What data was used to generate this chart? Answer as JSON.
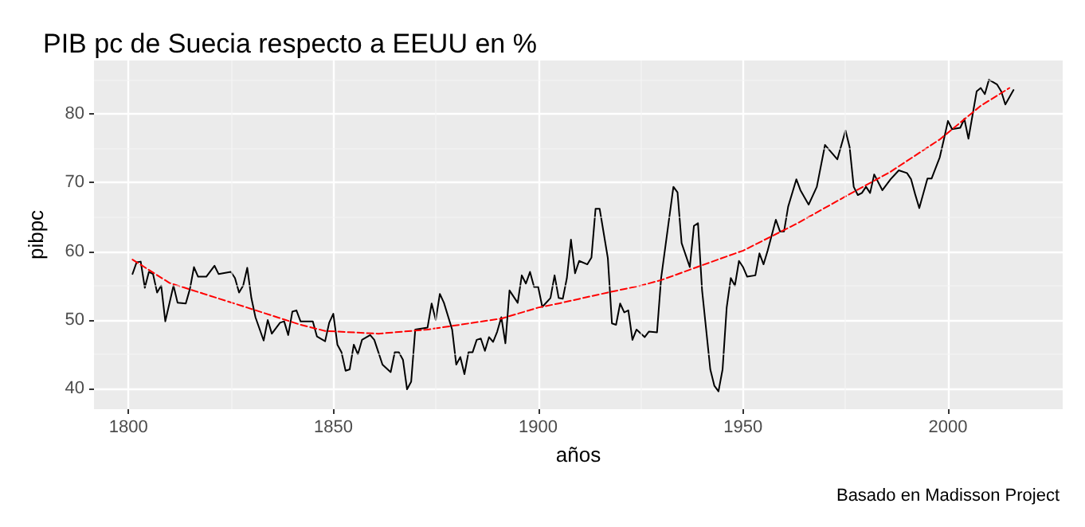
{
  "chart_data": {
    "type": "line",
    "title": "PIB pc de Suecia respecto a EEUU en %",
    "xlabel": "años",
    "ylabel": "pibpc",
    "annotations": [
      "Basado en Madisson Project"
    ],
    "xlim": [
      1791.6,
      2028
    ],
    "xticks": [
      1800,
      1850,
      1900,
      1950,
      2000
    ],
    "ylim": [
      37,
      87.8
    ],
    "yticks": [
      40,
      50,
      60,
      70,
      80
    ],
    "grid": true,
    "marker": "none",
    "series": [
      {
        "color": "#000000",
        "line_style": "solid",
        "x": [
          1801,
          1802,
          1803,
          1804,
          1805,
          1806,
          1807,
          1808,
          1809,
          1811,
          1812,
          1814,
          1815,
          1816,
          1817,
          1819,
          1821,
          1822,
          1825,
          1826,
          1827,
          1828,
          1829,
          1830,
          1831,
          1833,
          1834,
          1835,
          1837,
          1838,
          1839,
          1840,
          1841,
          1842,
          1845,
          1846,
          1848,
          1849,
          1850,
          1851,
          1852,
          1853,
          1854,
          1855,
          1856,
          1857,
          1859,
          1860,
          1861,
          1862,
          1864,
          1865,
          1866,
          1867,
          1868,
          1869,
          1870,
          1873,
          1874,
          1875,
          1876,
          1877,
          1879,
          1880,
          1881,
          1882,
          1883,
          1884,
          1885,
          1886,
          1887,
          1888,
          1889,
          1890,
          1891,
          1892,
          1893,
          1895,
          1896,
          1897,
          1898,
          1899,
          1900,
          1901,
          1903,
          1904,
          1905,
          1906,
          1907,
          1908,
          1909,
          1910,
          1912,
          1913,
          1914,
          1915,
          1917,
          1918,
          1919,
          1920,
          1921,
          1922,
          1923,
          1924,
          1926,
          1927,
          1929,
          1930,
          1933,
          1934,
          1935,
          1937,
          1938,
          1939,
          1940,
          1942,
          1943,
          1944,
          1945,
          1946,
          1947,
          1948,
          1949,
          1950,
          1951,
          1953,
          1954,
          1955,
          1956,
          1958,
          1959,
          1960,
          1961,
          1963,
          1964,
          1966,
          1968,
          1970,
          1973,
          1975,
          1976,
          1977,
          1978,
          1979,
          1980,
          1981,
          1982,
          1984,
          1986,
          1988,
          1990,
          1991,
          1992,
          1993,
          1995,
          1996,
          1998,
          1999,
          2000,
          2001,
          2003,
          2004,
          2005,
          2007,
          2008,
          2009,
          2010,
          2012,
          2013,
          2014,
          2016
        ],
        "values": [
          56.7,
          58.4,
          58.5,
          54.7,
          57,
          56.7,
          54,
          55,
          49.8,
          55,
          52.5,
          52.4,
          54.5,
          57.7,
          56.3,
          56.3,
          57.9,
          56.7,
          57,
          56.1,
          54,
          55,
          57.6,
          53.2,
          50.4,
          47,
          50,
          48,
          49.6,
          49.8,
          47.8,
          51.2,
          51.4,
          49.8,
          49.8,
          47.6,
          46.9,
          49.6,
          50.9,
          46.4,
          45.3,
          42.6,
          42.8,
          46.4,
          45,
          47.1,
          47.8,
          47.1,
          45.3,
          43.5,
          42.4,
          45.3,
          45.3,
          44.2,
          39.9,
          41,
          48.6,
          48.9,
          52.4,
          50,
          53.8,
          52.5,
          48.6,
          43.5,
          44.6,
          42.1,
          45.3,
          45.3,
          47.1,
          47.3,
          45.5,
          47.5,
          46.8,
          48.3,
          50.4,
          46.6,
          54.3,
          52.5,
          56.5,
          55.3,
          57,
          54.8,
          54.8,
          51.9,
          53.2,
          56.5,
          53.2,
          53.1,
          56.1,
          61.7,
          56.8,
          58.6,
          58.1,
          59.1,
          66.2,
          66.2,
          59,
          49.5,
          49.3,
          52.4,
          51.1,
          51.4,
          47.1,
          48.6,
          47.5,
          48.3,
          48.2,
          56.1,
          69.4,
          68.6,
          61.2,
          57.7,
          63.7,
          64.1,
          54.3,
          42.8,
          40.4,
          39.6,
          42.8,
          51.8,
          56.1,
          55,
          58.6,
          57.7,
          56.3,
          56.5,
          59.7,
          58.1,
          60.1,
          64.6,
          62.9,
          62.9,
          66.5,
          70.5,
          68.9,
          66.8,
          69.4,
          75.5,
          73.4,
          77.6,
          75.2,
          69.4,
          68.2,
          68.5,
          69.4,
          68.5,
          71.2,
          68.9,
          70.5,
          71.8,
          71.4,
          70.5,
          68.3,
          66.3,
          70.6,
          70.6,
          73.7,
          76.3,
          79,
          77.8,
          78,
          79.3,
          76.4,
          83.3,
          83.8,
          82.9,
          85,
          84.3,
          83.3,
          81.4,
          83.5
        ]
      },
      {
        "color": "#ff0000",
        "line_style": "dashed",
        "x": [
          1801,
          1810,
          1829,
          1842,
          1848,
          1861,
          1873,
          1891,
          1900,
          1905,
          1917,
          1925,
          1930,
          1942,
          1950,
          1963,
          1975,
          1986,
          1998,
          2008,
          2015
        ],
        "values": [
          58.8,
          55.4,
          51.8,
          49.3,
          48.4,
          48,
          48.6,
          50.2,
          51.8,
          52.4,
          54,
          55,
          55.8,
          58.4,
          60.1,
          64,
          68,
          71.6,
          76.3,
          81.2,
          83.8
        ]
      }
    ]
  }
}
